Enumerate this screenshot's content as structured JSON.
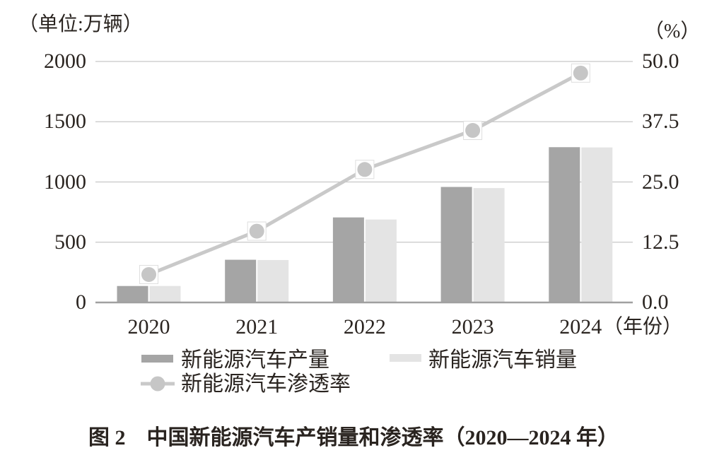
{
  "chart": {
    "colors": {
      "production_bar": "#a5a5a5",
      "sales_bar": "#e4e4e4",
      "penetration_line": "#c9c9c9",
      "penetration_point": "#c6c6c6",
      "point_box_stroke": "#dedede",
      "point_box_fill": "#ffffff",
      "grid": "#c7c7c7",
      "axis_line": "#a0a0a0",
      "text": "#2a2420"
    }
  },
  "chart_data": {
    "type": "bar+line",
    "title": "图 2　中国新能源汽车产销量和渗透率（2020—2024 年）",
    "categories": [
      "2020",
      "2021",
      "2022",
      "2023",
      "2024"
    ],
    "series": [
      {
        "name": "新能源汽车产量",
        "type": "bar",
        "axis": "left",
        "values": [
          136.6,
          354.5,
          705.8,
          958.7,
          1288.8
        ]
      },
      {
        "name": "新能源汽车销量",
        "type": "bar",
        "axis": "left",
        "values": [
          136.7,
          352.1,
          688.7,
          949.5,
          1286.6
        ]
      },
      {
        "name": "新能源汽车渗透率",
        "type": "line",
        "axis": "right",
        "values": [
          5.8,
          14.8,
          27.6,
          35.7,
          47.6
        ]
      }
    ],
    "left_axis": {
      "label": "（单位:万辆）",
      "range": [
        0,
        2000
      ],
      "ticks": [
        0,
        500,
        1000,
        1500,
        2000
      ]
    },
    "right_axis": {
      "label": "（%）",
      "range": [
        0,
        50
      ],
      "ticks": [
        0.0,
        12.5,
        25.0,
        37.5,
        50.0
      ],
      "tick_decimals": 1
    },
    "xlabel": "（年份）",
    "grid": true,
    "legend_position": "bottom"
  }
}
